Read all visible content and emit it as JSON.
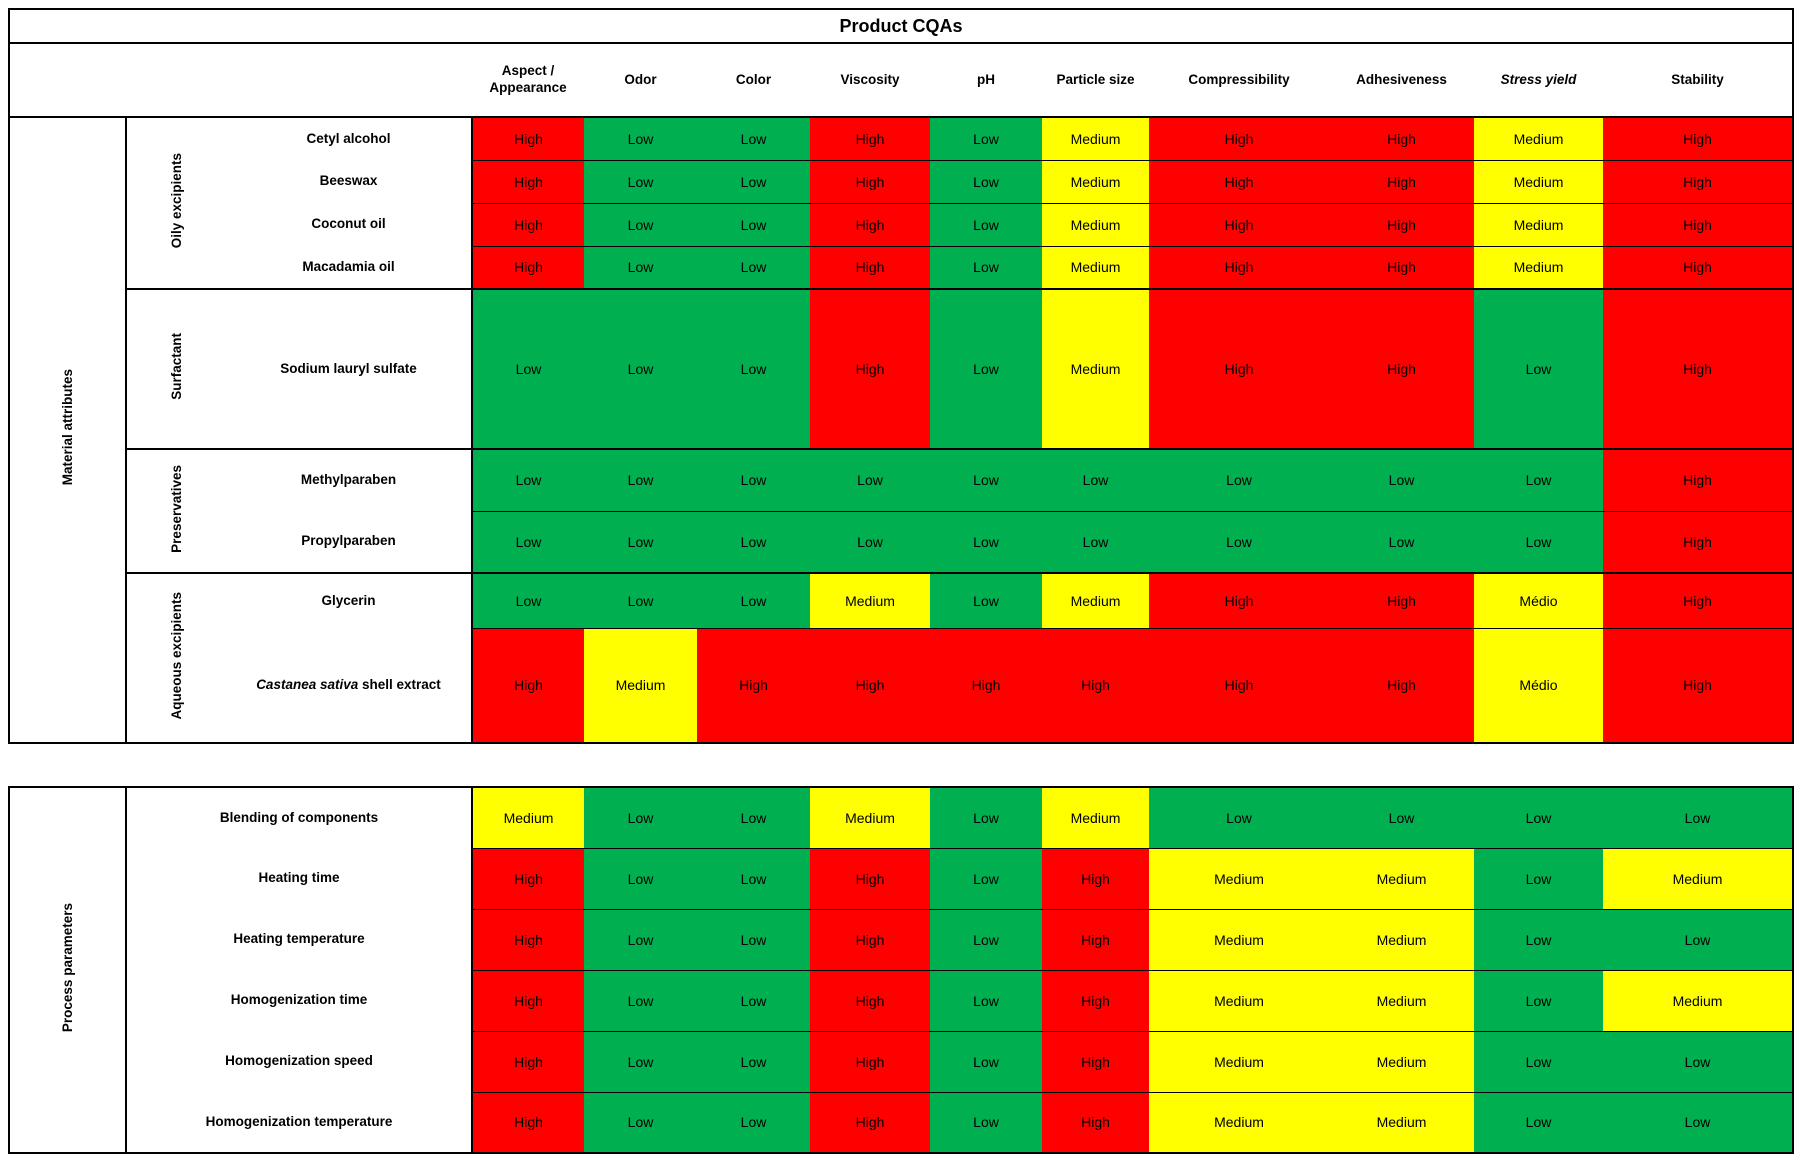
{
  "chart_data": {
    "type": "heatmap",
    "title": "Product CQAs",
    "legend": {
      "High": "#FF0000",
      "Medium": "#FFFF00",
      "Médio": "#FFFF00",
      "Low": "#00B050"
    },
    "columns": [
      {
        "label": "Aspect / Appearance"
      },
      {
        "label": "Odor"
      },
      {
        "label": "Color"
      },
      {
        "label": "Viscosity"
      },
      {
        "label": "pH"
      },
      {
        "label": "Particle size"
      },
      {
        "label": "Compressibility"
      },
      {
        "label": "Adhesiveness"
      },
      {
        "label": "Stress yield",
        "italic": true
      },
      {
        "label": "Stability"
      }
    ],
    "sections": [
      {
        "name": "Material attributes",
        "groups": [
          {
            "name": "Oily excipients",
            "rows": [
              {
                "label": "Cetyl alcohol",
                "values": [
                  "High",
                  "Low",
                  "Low",
                  "High",
                  "Low",
                  "Medium",
                  "High",
                  "High",
                  "Medium",
                  "High"
                ]
              },
              {
                "label": "Beeswax",
                "values": [
                  "High",
                  "Low",
                  "Low",
                  "High",
                  "Low",
                  "Medium",
                  "High",
                  "High",
                  "Medium",
                  "High"
                ]
              },
              {
                "label": "Coconut oil",
                "values": [
                  "High",
                  "Low",
                  "Low",
                  "High",
                  "Low",
                  "Medium",
                  "High",
                  "High",
                  "Medium",
                  "High"
                ]
              },
              {
                "label": "Macadamia oil",
                "values": [
                  "High",
                  "Low",
                  "Low",
                  "High",
                  "Low",
                  "Medium",
                  "High",
                  "High",
                  "Medium",
                  "High"
                ]
              }
            ]
          },
          {
            "name": "Surfactant",
            "rows": [
              {
                "label": "Sodium lauryl sulfate",
                "values": [
                  "Low",
                  "Low",
                  "Low",
                  "High",
                  "Low",
                  "Medium",
                  "High",
                  "High",
                  "Low",
                  "High"
                ]
              }
            ]
          },
          {
            "name": "Preservatives",
            "rows": [
              {
                "label": "Methylparaben",
                "values": [
                  "Low",
                  "Low",
                  "Low",
                  "Low",
                  "Low",
                  "Low",
                  "Low",
                  "Low",
                  "Low",
                  "High"
                ]
              },
              {
                "label": "Propylparaben",
                "values": [
                  "Low",
                  "Low",
                  "Low",
                  "Low",
                  "Low",
                  "Low",
                  "Low",
                  "Low",
                  "Low",
                  "High"
                ]
              }
            ]
          },
          {
            "name": "Aqueous excipients",
            "rows": [
              {
                "label": "Glycerin",
                "values": [
                  "Low",
                  "Low",
                  "Low",
                  "Medium",
                  "Low",
                  "Medium",
                  "High",
                  "High",
                  "Médio",
                  "High"
                ]
              },
              {
                "label": "Castanea sativa shell extract",
                "label_parts": [
                  {
                    "text": "Castanea sativa",
                    "italic": true
                  },
                  {
                    "text": " shell extract",
                    "italic": false
                  }
                ],
                "values": [
                  "High",
                  "Medium",
                  "High",
                  "High",
                  "High",
                  "High",
                  "High",
                  "High",
                  "Médio",
                  "High"
                ]
              }
            ]
          }
        ]
      },
      {
        "name": "Process parameters",
        "groups": [
          {
            "name": "",
            "rows": [
              {
                "label": "Blending of components",
                "values": [
                  "Medium",
                  "Low",
                  "Low",
                  "Medium",
                  "Low",
                  "Medium",
                  "Low",
                  "Low",
                  "Low",
                  "Low"
                ]
              },
              {
                "label": "Heating time",
                "values": [
                  "High",
                  "Low",
                  "Low",
                  "High",
                  "Low",
                  "High",
                  "Medium",
                  "Medium",
                  "Low",
                  "Medium"
                ]
              },
              {
                "label": "Heating temperature",
                "values": [
                  "High",
                  "Low",
                  "Low",
                  "High",
                  "Low",
                  "High",
                  "Medium",
                  "Medium",
                  "Low",
                  "Low"
                ]
              },
              {
                "label": "Homogenization time",
                "values": [
                  "High",
                  "Low",
                  "Low",
                  "High",
                  "Low",
                  "High",
                  "Medium",
                  "Medium",
                  "Low",
                  "Medium"
                ]
              },
              {
                "label": "Homogenization speed",
                "values": [
                  "High",
                  "Low",
                  "Low",
                  "High",
                  "Low",
                  "High",
                  "Medium",
                  "Medium",
                  "Low",
                  "Low"
                ]
              },
              {
                "label": "Homogenization temperature",
                "values": [
                  "High",
                  "Low",
                  "Low",
                  "High",
                  "Low",
                  "High",
                  "Medium",
                  "Medium",
                  "Low",
                  "Low"
                ]
              }
            ]
          }
        ]
      }
    ]
  }
}
